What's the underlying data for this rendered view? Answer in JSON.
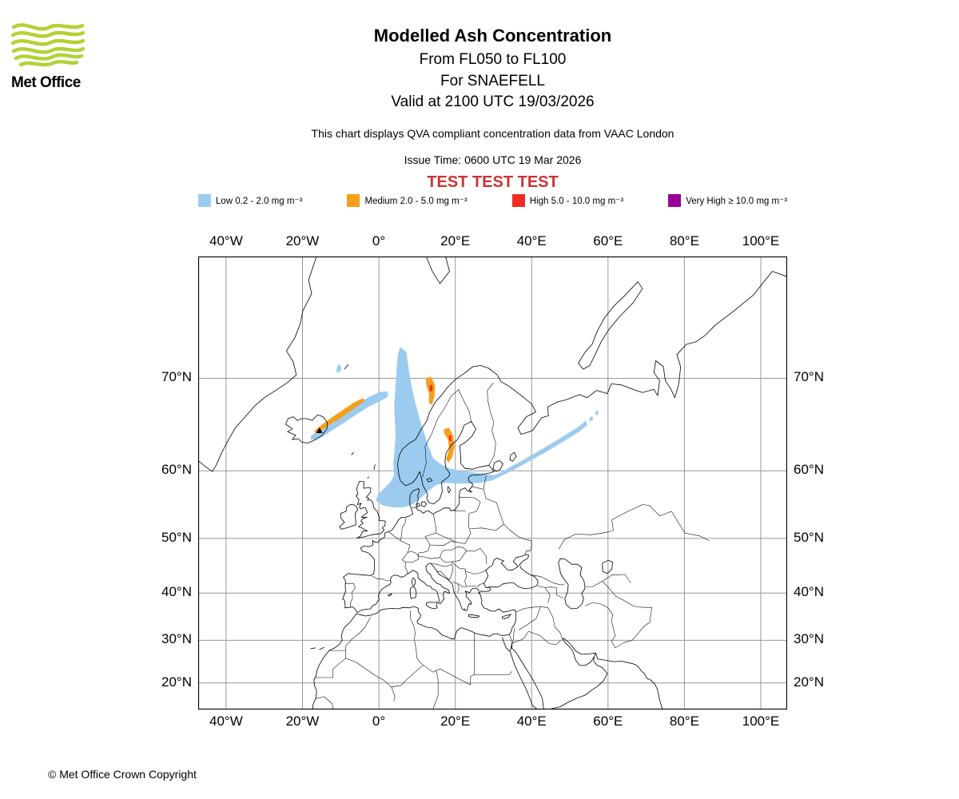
{
  "header": {
    "logo_text": "Met Office",
    "logo_color": "#B2D235",
    "title": "Modelled Ash Concentration",
    "subtitle_fl": "From FL050 to FL100",
    "subtitle_volcano": "For SNAEFELL",
    "subtitle_valid": "Valid at 2100 UTC 19/03/2026",
    "note": "This chart displays QVA compliant concentration data from VAAC London",
    "issue_time": "Issue Time: 0600 UTC 19 Mar 2026",
    "test_banner": "TEST TEST TEST",
    "test_color": "#CC3333"
  },
  "legend": {
    "items": [
      {
        "label": "Low 0.2 - 2.0 mg m⁻³",
        "color": "#9CCBF0"
      },
      {
        "label": "Medium 2.0 - 5.0 mg m⁻³",
        "color": "#F79E1B"
      },
      {
        "label": "High 5.0 - 10.0 mg m⁻³",
        "color": "#EE2C23"
      },
      {
        "label": "Very High ≥ 10.0 mg m⁻³",
        "color": "#990099"
      }
    ]
  },
  "map": {
    "grid_color": "#999999",
    "lon_ticks": [
      {
        "label": "40°W",
        "lon": -40
      },
      {
        "label": "20°W",
        "lon": -20
      },
      {
        "label": "0°",
        "lon": 0
      },
      {
        "label": "20°E",
        "lon": 20
      },
      {
        "label": "40°E",
        "lon": 40
      },
      {
        "label": "60°E",
        "lon": 60
      },
      {
        "label": "80°E",
        "lon": 80
      },
      {
        "label": "100°E",
        "lon": 100
      }
    ],
    "lat_ticks": [
      {
        "label": "70°N",
        "lat": 70
      },
      {
        "label": "60°N",
        "lat": 60
      },
      {
        "label": "50°N",
        "lat": 50
      },
      {
        "label": "40°N",
        "lat": 40
      },
      {
        "label": "30°N",
        "lat": 30
      },
      {
        "label": "20°N",
        "lat": 20
      }
    ]
  },
  "footer": {
    "copyright": "© Met Office Crown Copyright"
  },
  "chart_data": {
    "type": "map",
    "title": "Modelled Ash Concentration",
    "flight_levels": "FL050 - FL100",
    "volcano": "SNAEFELL",
    "valid_time": "2100 UTC 19/03/2026",
    "issue_time": "0600 UTC 19 Mar 2026",
    "data_source": "QVA compliant concentration data from VAAC London",
    "projection": "mercator",
    "lon_range": [
      -47.3,
      106.9
    ],
    "lat_range": [
      13.4,
      78.4
    ],
    "grid_lon_step_deg": 20,
    "grid_lat_step_deg": 10,
    "source_marker": {
      "name": "SNAEFELL",
      "lon": -15.55,
      "lat": 64.8
    },
    "levels": [
      {
        "name": "Low",
        "range_mg_m3": "0.2 - 2.0",
        "color": "#9CCBF0"
      },
      {
        "name": "Medium",
        "range_mg_m3": "2.0 - 5.0",
        "color": "#F79E1B"
      },
      {
        "name": "High",
        "range_mg_m3": "5.0 - 10.0",
        "color": "#EE2C23"
      },
      {
        "name": "Very High",
        "range_mg_m3": ">= 10.0",
        "color": "#990099"
      }
    ],
    "ash_regions": [
      {
        "level": "Low",
        "area": "Iceland plume",
        "polygon": [
          [
            -17.8,
            64.2
          ],
          [
            -16.5,
            64.7
          ],
          [
            -14,
            65.3
          ],
          [
            -11,
            66.1
          ],
          [
            -8,
            66.9
          ],
          [
            -5,
            67.7
          ],
          [
            -2.5,
            68.3
          ],
          [
            0.3,
            68.75
          ],
          [
            2.2,
            68.8
          ],
          [
            2.4,
            68.3
          ],
          [
            0.5,
            67.9
          ],
          [
            -2.8,
            67.3
          ],
          [
            -6,
            66.5
          ],
          [
            -9,
            65.7
          ],
          [
            -12,
            64.9
          ],
          [
            -14.5,
            64.2
          ],
          [
            -16.5,
            63.8
          ],
          [
            -17.8,
            63.8
          ]
        ]
      },
      {
        "level": "Low",
        "area": "Jan Mayen patch",
        "polygon": [
          [
            -11.2,
            70.6
          ],
          [
            -10.8,
            71.1
          ],
          [
            -10.1,
            71.2
          ],
          [
            -9.8,
            70.8
          ],
          [
            -10.4,
            70.5
          ]
        ]
      },
      {
        "level": "Low",
        "area": "Norway-Baltic plume",
        "polygon": [
          [
            5.6,
            72.6
          ],
          [
            7.2,
            72.2
          ],
          [
            7.8,
            70.8
          ],
          [
            8.6,
            69.2
          ],
          [
            9.6,
            67.6
          ],
          [
            10.6,
            66.2
          ],
          [
            11.8,
            64.6
          ],
          [
            13.0,
            63.0
          ],
          [
            14.2,
            61.6
          ],
          [
            16.0,
            60.9
          ],
          [
            18.5,
            60.3
          ],
          [
            21.5,
            60.0
          ],
          [
            24.5,
            59.8
          ],
          [
            27.5,
            59.6
          ],
          [
            30.0,
            59.4
          ],
          [
            32.0,
            59.8
          ],
          [
            34.5,
            60.5
          ],
          [
            37.5,
            61.3
          ],
          [
            40.5,
            62.1
          ],
          [
            43.5,
            62.9
          ],
          [
            46.5,
            63.7
          ],
          [
            49.5,
            64.5
          ],
          [
            52.5,
            65.3
          ],
          [
            54.2,
            65.9
          ],
          [
            54.5,
            65.4
          ],
          [
            52.5,
            64.7
          ],
          [
            49.5,
            63.9
          ],
          [
            46.5,
            63.1
          ],
          [
            43.5,
            62.3
          ],
          [
            40.5,
            61.5
          ],
          [
            37.5,
            60.7
          ],
          [
            34.5,
            59.9
          ],
          [
            32.0,
            59.3
          ],
          [
            29.5,
            58.7
          ],
          [
            26.5,
            58.4
          ],
          [
            23.5,
            58.3
          ],
          [
            20.5,
            58.3
          ],
          [
            17.5,
            58.4
          ],
          [
            15.0,
            58.1
          ],
          [
            13.0,
            57.3
          ],
          [
            11.0,
            56.3
          ],
          [
            9.0,
            55.4
          ],
          [
            6.5,
            54.9
          ],
          [
            3.5,
            54.9
          ],
          [
            1.0,
            55.2
          ],
          [
            -0.8,
            55.9
          ],
          [
            -0.2,
            56.8
          ],
          [
            1.5,
            57.7
          ],
          [
            3.0,
            58.5
          ],
          [
            4.0,
            59.4
          ],
          [
            3.8,
            61.0
          ],
          [
            4.1,
            62.6
          ],
          [
            4.4,
            64.2
          ],
          [
            4.2,
            65.8
          ],
          [
            4.0,
            67.4
          ],
          [
            4.3,
            69.0
          ],
          [
            4.6,
            70.6
          ],
          [
            4.9,
            71.9
          ]
        ]
      },
      {
        "level": "Low",
        "area": "detached patch east 1",
        "polygon": [
          [
            55.0,
            66.1
          ],
          [
            55.9,
            66.4
          ],
          [
            56.1,
            66.0
          ],
          [
            55.3,
            65.8
          ]
        ]
      },
      {
        "level": "Low",
        "area": "detached patch east 2",
        "polygon": [
          [
            56.6,
            66.8
          ],
          [
            57.3,
            67.0
          ],
          [
            57.5,
            66.6
          ],
          [
            56.9,
            66.4
          ]
        ]
      },
      {
        "level": "Medium",
        "area": "Iceland plume core",
        "polygon": [
          [
            -16.6,
            64.5
          ],
          [
            -14.5,
            65.0
          ],
          [
            -12,
            65.7
          ],
          [
            -9.5,
            66.3
          ],
          [
            -7,
            67.0
          ],
          [
            -4.8,
            67.6
          ],
          [
            -3.6,
            67.95
          ],
          [
            -4.2,
            68.15
          ],
          [
            -6.5,
            67.75
          ],
          [
            -9,
            67.1
          ],
          [
            -11.5,
            66.45
          ],
          [
            -14,
            65.75
          ],
          [
            -16,
            65.1
          ],
          [
            -16.9,
            64.8
          ]
        ]
      },
      {
        "level": "Medium",
        "area": "Lofoten band",
        "polygon": [
          [
            12.3,
            70.0
          ],
          [
            13.6,
            70.15
          ],
          [
            14.7,
            69.4
          ],
          [
            14.6,
            68.4
          ],
          [
            13.9,
            67.5
          ],
          [
            13.1,
            67.7
          ],
          [
            13.15,
            68.6
          ],
          [
            12.4,
            69.4
          ]
        ]
      },
      {
        "level": "Medium",
        "area": "Gulf of Bothnia band",
        "polygon": [
          [
            17.1,
            65.0
          ],
          [
            18.4,
            65.1
          ],
          [
            19.5,
            64.2
          ],
          [
            19.8,
            63.0
          ],
          [
            19.2,
            61.7
          ],
          [
            18.2,
            61.0
          ],
          [
            17.6,
            61.5
          ],
          [
            18.4,
            62.6
          ],
          [
            18.1,
            63.8
          ],
          [
            17.0,
            64.6
          ]
        ]
      },
      {
        "level": "High",
        "area": "Lofoten core",
        "polygon": [
          [
            13.2,
            69.3
          ],
          [
            13.9,
            69.45
          ],
          [
            14.1,
            68.9
          ],
          [
            13.4,
            68.75
          ]
        ]
      },
      {
        "level": "High",
        "area": "Bothnia core",
        "polygon": [
          [
            18.3,
            64.3
          ],
          [
            18.9,
            64.2
          ],
          [
            19.0,
            63.6
          ],
          [
            18.4,
            63.7
          ]
        ]
      }
    ]
  }
}
